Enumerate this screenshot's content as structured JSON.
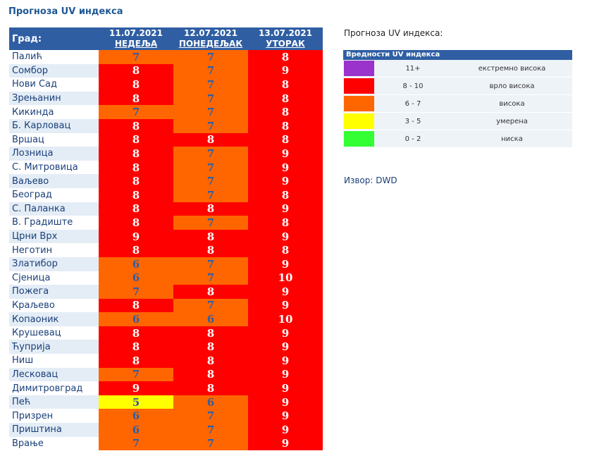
{
  "title": "Прогноза UV индекса",
  "table": {
    "city_header": "Град:",
    "days": [
      {
        "date": "11.07.2021",
        "dow": "НЕДЕЉА"
      },
      {
        "date": "12.07.2021",
        "dow": "ПОНЕДЕЉАК"
      },
      {
        "date": "13.07.2021",
        "dow": "УТОРАК"
      }
    ],
    "rows": [
      {
        "city": "Палић",
        "v": [
          "7",
          "7",
          "8"
        ]
      },
      {
        "city": "Сомбор",
        "v": [
          "8",
          "7",
          "9"
        ]
      },
      {
        "city": "Нови Сад",
        "v": [
          "8",
          "7",
          "8"
        ]
      },
      {
        "city": "Зрењанин",
        "v": [
          "8",
          "7",
          "8"
        ]
      },
      {
        "city": "Кикинда",
        "v": [
          "7",
          "7",
          "8"
        ]
      },
      {
        "city": "Б. Карловац",
        "v": [
          "8",
          "7",
          "8"
        ]
      },
      {
        "city": "Вршац",
        "v": [
          "8",
          "8",
          "8"
        ]
      },
      {
        "city": "Лозница",
        "v": [
          "8",
          "7",
          "9"
        ]
      },
      {
        "city": "С. Митровица",
        "v": [
          "8",
          "7",
          "9"
        ]
      },
      {
        "city": "Ваљево",
        "v": [
          "8",
          "7",
          "9"
        ]
      },
      {
        "city": "Београд",
        "v": [
          "8",
          "7",
          "8"
        ]
      },
      {
        "city": "С. Паланка",
        "v": [
          "8",
          "8",
          "9"
        ]
      },
      {
        "city": "В. Градиште",
        "v": [
          "8",
          "7",
          "8"
        ]
      },
      {
        "city": "Црни Врх",
        "v": [
          "9",
          "8",
          "9"
        ]
      },
      {
        "city": "Неготин",
        "v": [
          "8",
          "8",
          "8"
        ]
      },
      {
        "city": "Златибор",
        "v": [
          "6",
          "7",
          "9"
        ]
      },
      {
        "city": "Сјеница",
        "v": [
          "6",
          "7",
          "10"
        ]
      },
      {
        "city": "Пожега",
        "v": [
          "7",
          "8",
          "9"
        ]
      },
      {
        "city": "Краљево",
        "v": [
          "8",
          "7",
          "9"
        ]
      },
      {
        "city": "Копаоник",
        "v": [
          "6",
          "6",
          "10"
        ]
      },
      {
        "city": "Крушевац",
        "v": [
          "8",
          "8",
          "9"
        ]
      },
      {
        "city": "Ћуприја",
        "v": [
          "8",
          "8",
          "9"
        ]
      },
      {
        "city": "Ниш",
        "v": [
          "8",
          "8",
          "9"
        ]
      },
      {
        "city": "Лесковац",
        "v": [
          "7",
          "8",
          "9"
        ]
      },
      {
        "city": "Димитровград",
        "v": [
          "9",
          "8",
          "9"
        ]
      },
      {
        "city": "Пећ",
        "v": [
          "5",
          "6",
          "9"
        ]
      },
      {
        "city": "Призрен",
        "v": [
          "6",
          "7",
          "9"
        ]
      },
      {
        "city": "Приштина",
        "v": [
          "6",
          "7",
          "9"
        ]
      },
      {
        "city": "Врање",
        "v": [
          "7",
          "7",
          "9"
        ]
      }
    ]
  },
  "legend": {
    "title": "Прогноза UV индекса:",
    "header": "Вредности UV индекса",
    "items": [
      {
        "color": "#9933cc",
        "range": "11+",
        "desc": "екстремно висока"
      },
      {
        "color": "#ff0000",
        "range": "8 - 10",
        "desc": "врло висока"
      },
      {
        "color": "#ff6600",
        "range": "6 - 7",
        "desc": "висока"
      },
      {
        "color": "#ffff00",
        "range": "3 - 5",
        "desc": "умерена"
      },
      {
        "color": "#33ff33",
        "range": "0 - 2",
        "desc": "ниска"
      }
    ]
  },
  "source": "Извор: DWD"
}
